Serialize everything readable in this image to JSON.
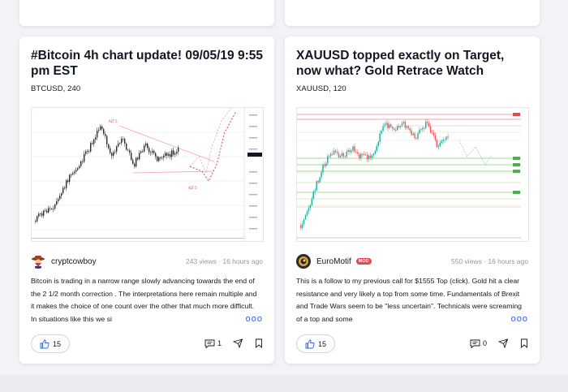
{
  "cards": [
    {
      "title": "#Bitcoin 4h chart update! 09/05/19 9:55 pm EST",
      "symbol": "BTCUSD, 240",
      "author": "cryptcowboy",
      "meta": "243 views · 16 hours ago",
      "description": "Bitcoin is trading in a narrow range slowly advancing towards the end of the 2 1/2 month correction . The interpretations here remain multiple and it makes the choice of one count over the other that much more difficult. In situations like this we si",
      "more": "ooo",
      "likes": "15",
      "comments": "1",
      "chart_labels": {
        "top": "ALT 5",
        "bottom": "ALT 5"
      }
    },
    {
      "title": "XAUUSD topped exactly on Target, now what? Gold Retrace Watch",
      "symbol": "XAUUSD, 120",
      "author": "EuroMotif",
      "badge": "MOD",
      "meta": "550 views · 16 hours ago",
      "description": "This is a follow to my previous call for $1555 Top (click). Gold hit a clear resistance and very likely a top from some time. Fundamentals of Brexit and Trade Wars seem to be \"less uncertain\". Technicals were screaming of a top and some",
      "more": "ooo",
      "likes": "15",
      "comments": "0"
    }
  ],
  "icons": [
    "thumbs-up-icon",
    "comment-icon",
    "share-icon",
    "bookmark-icon",
    "cowboy-avatar-icon",
    "euromotif-avatar-icon"
  ],
  "colors": {
    "accent": "#2962ff",
    "up_candle": "#26a69a",
    "down_candle": "#ef5350",
    "text": "#131722",
    "muted": "#9598a1"
  }
}
